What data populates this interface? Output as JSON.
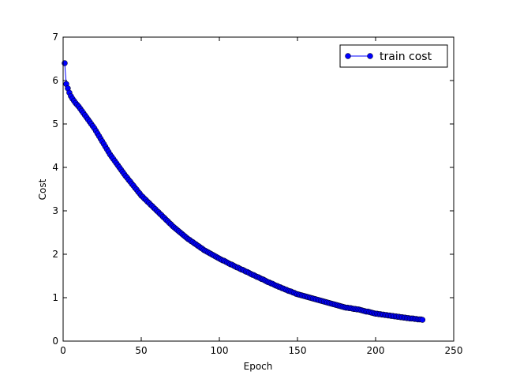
{
  "chart_data": {
    "type": "line",
    "xlabel": "Epoch",
    "ylabel": "Cost",
    "x": [
      1,
      2,
      3,
      4,
      5,
      6,
      7,
      8,
      9,
      10,
      11,
      12,
      13,
      14,
      15,
      16,
      17,
      18,
      19,
      20,
      21,
      22,
      23,
      24,
      25,
      26,
      27,
      28,
      29,
      30,
      31,
      32,
      33,
      34,
      35,
      36,
      37,
      38,
      39,
      40,
      41,
      42,
      43,
      44,
      45,
      46,
      47,
      48,
      49,
      50,
      51,
      52,
      53,
      54,
      55,
      56,
      57,
      58,
      59,
      60,
      61,
      62,
      63,
      64,
      65,
      66,
      67,
      68,
      69,
      70,
      71,
      72,
      73,
      74,
      75,
      76,
      77,
      78,
      79,
      80,
      81,
      82,
      83,
      84,
      85,
      86,
      87,
      88,
      89,
      90,
      91,
      92,
      93,
      94,
      95,
      96,
      97,
      98,
      99,
      100,
      101,
      102,
      103,
      104,
      105,
      106,
      107,
      108,
      109,
      110,
      111,
      112,
      113,
      114,
      115,
      116,
      117,
      118,
      119,
      120,
      121,
      122,
      123,
      124,
      125,
      126,
      127,
      128,
      129,
      130,
      131,
      132,
      133,
      134,
      135,
      136,
      137,
      138,
      139,
      140,
      141,
      142,
      143,
      144,
      145,
      146,
      147,
      148,
      149,
      150,
      151,
      152,
      153,
      154,
      155,
      156,
      157,
      158,
      159,
      160,
      161,
      162,
      163,
      164,
      165,
      166,
      167,
      168,
      169,
      170,
      171,
      172,
      173,
      174,
      175,
      176,
      177,
      178,
      179,
      180,
      181,
      182,
      183,
      184,
      185,
      186,
      187,
      188,
      189,
      190,
      191,
      192,
      193,
      194,
      195,
      196,
      197,
      198,
      199,
      200,
      201,
      202,
      203,
      204,
      205,
      206,
      207,
      208,
      209,
      210,
      211,
      212,
      213,
      214,
      215,
      216,
      217,
      218,
      219,
      220,
      221,
      222,
      223,
      224,
      225,
      226,
      227,
      228,
      229,
      230
    ],
    "series": [
      {
        "name": "train cost",
        "color": "#0000ff",
        "values": [
          6.4,
          5.92,
          5.82,
          5.72,
          5.64,
          5.58,
          5.53,
          5.48,
          5.44,
          5.4,
          5.35,
          5.3,
          5.25,
          5.2,
          5.15,
          5.1,
          5.05,
          5.0,
          4.95,
          4.9,
          4.84,
          4.78,
          4.72,
          4.66,
          4.6,
          4.54,
          4.48,
          4.42,
          4.36,
          4.3,
          4.25,
          4.2,
          4.15,
          4.1,
          4.05,
          4.0,
          3.95,
          3.9,
          3.85,
          3.8,
          3.76,
          3.71,
          3.67,
          3.62,
          3.58,
          3.53,
          3.49,
          3.44,
          3.4,
          3.35,
          3.32,
          3.28,
          3.25,
          3.21,
          3.18,
          3.14,
          3.11,
          3.07,
          3.04,
          3.0,
          2.97,
          2.93,
          2.9,
          2.86,
          2.83,
          2.79,
          2.76,
          2.72,
          2.69,
          2.65,
          2.62,
          2.59,
          2.56,
          2.53,
          2.5,
          2.47,
          2.44,
          2.41,
          2.38,
          2.35,
          2.33,
          2.3,
          2.28,
          2.25,
          2.23,
          2.2,
          2.18,
          2.15,
          2.13,
          2.1,
          2.08,
          2.06,
          2.04,
          2.02,
          2.0,
          1.98,
          1.96,
          1.94,
          1.92,
          1.9,
          1.88,
          1.86,
          1.85,
          1.83,
          1.81,
          1.79,
          1.77,
          1.76,
          1.74,
          1.72,
          1.7,
          1.69,
          1.67,
          1.65,
          1.64,
          1.62,
          1.6,
          1.59,
          1.57,
          1.55,
          1.53,
          1.52,
          1.5,
          1.48,
          1.47,
          1.45,
          1.43,
          1.42,
          1.4,
          1.38,
          1.36,
          1.35,
          1.33,
          1.32,
          1.3,
          1.28,
          1.27,
          1.25,
          1.24,
          1.22,
          1.21,
          1.19,
          1.18,
          1.16,
          1.15,
          1.14,
          1.12,
          1.11,
          1.09,
          1.08,
          1.07,
          1.06,
          1.05,
          1.04,
          1.03,
          1.02,
          1.01,
          1.0,
          0.99,
          0.98,
          0.97,
          0.96,
          0.95,
          0.94,
          0.93,
          0.92,
          0.91,
          0.9,
          0.89,
          0.88,
          0.87,
          0.86,
          0.85,
          0.84,
          0.83,
          0.82,
          0.81,
          0.8,
          0.79,
          0.78,
          0.77,
          0.77,
          0.76,
          0.76,
          0.75,
          0.74,
          0.74,
          0.73,
          0.73,
          0.72,
          0.71,
          0.7,
          0.69,
          0.68,
          0.68,
          0.67,
          0.66,
          0.65,
          0.64,
          0.63,
          0.63,
          0.62,
          0.62,
          0.61,
          0.61,
          0.6,
          0.6,
          0.59,
          0.59,
          0.58,
          0.58,
          0.57,
          0.57,
          0.56,
          0.56,
          0.55,
          0.55,
          0.54,
          0.54,
          0.53,
          0.53,
          0.52,
          0.52,
          0.52,
          0.51,
          0.51,
          0.5,
          0.5,
          0.5,
          0.49
        ]
      }
    ],
    "xlim": [
      0,
      250
    ],
    "xticks": [
      0,
      50,
      100,
      150,
      200,
      250
    ],
    "ylim": [
      0,
      7
    ],
    "yticks": [
      0,
      1,
      2,
      3,
      4,
      5,
      6,
      7
    ],
    "legend": "upper right"
  }
}
